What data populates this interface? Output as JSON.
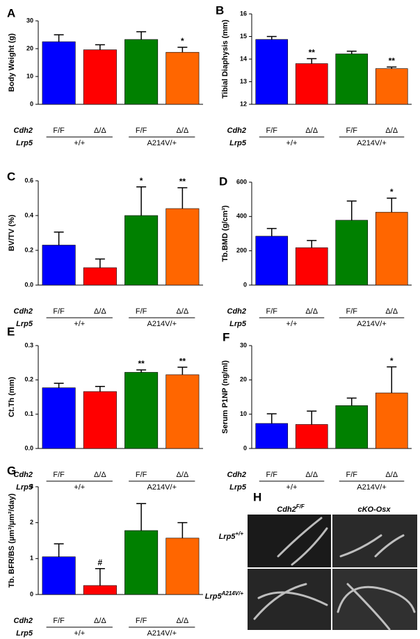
{
  "chart_data": [
    {
      "type": "bar",
      "panel": "A",
      "ylabel": "Body Weight (g)",
      "categories": [
        "F/F",
        "Δ/Δ",
        "F/F",
        "Δ/Δ"
      ],
      "groups": [
        "+/+",
        "A214V/+"
      ],
      "row_labels": [
        "Cdh2",
        "Lrp5"
      ],
      "colors": [
        "#0000ff",
        "#ff0000",
        "#008000",
        "#ff6600"
      ],
      "values": [
        22.5,
        19.6,
        23.3,
        18.7
      ],
      "errors": [
        2.5,
        1.8,
        2.8,
        1.8
      ],
      "annotations": [
        {
          "index": 3,
          "text": "*"
        }
      ],
      "ylim": [
        0,
        30
      ],
      "yticks": [
        0,
        10,
        20,
        30
      ]
    },
    {
      "type": "bar",
      "panel": "B",
      "ylabel": "Tibial Diaphysis (mm)",
      "categories": [
        "F/F",
        "Δ/Δ",
        "F/F",
        "Δ/Δ"
      ],
      "groups": [
        "+/+",
        "A214V/+"
      ],
      "row_labels": [
        "Cdh2",
        "Lrp5"
      ],
      "colors": [
        "#0000ff",
        "#ff0000",
        "#008000",
        "#ff6600"
      ],
      "values": [
        14.87,
        13.8,
        14.23,
        13.58
      ],
      "errors": [
        0.13,
        0.22,
        0.12,
        0.07
      ],
      "annotations": [
        {
          "index": 1,
          "text": "**"
        },
        {
          "index": 3,
          "text": "**"
        }
      ],
      "ylim": [
        12,
        16
      ],
      "yticks": [
        12,
        13,
        14,
        15,
        16
      ]
    },
    {
      "type": "bar",
      "panel": "C",
      "ylabel": "BV/TV (%)",
      "categories": [
        "F/F",
        "Δ/Δ",
        "F/F",
        "Δ/Δ"
      ],
      "groups": [
        "+/+",
        "A214V/+"
      ],
      "row_labels": [
        "Cdh2",
        "Lrp5"
      ],
      "colors": [
        "#0000ff",
        "#ff0000",
        "#008000",
        "#ff6600"
      ],
      "values": [
        0.23,
        0.1,
        0.4,
        0.44
      ],
      "errors": [
        0.075,
        0.05,
        0.165,
        0.12
      ],
      "annotations": [
        {
          "index": 2,
          "text": "*"
        },
        {
          "index": 3,
          "text": "**"
        }
      ],
      "ylim": [
        0,
        0.6
      ],
      "yticks": [
        {
          "value": 0,
          "label": "0.0"
        },
        0.2,
        0.4,
        0.6
      ]
    },
    {
      "type": "bar",
      "panel": "D",
      "ylabel": "Tb.BMD (g/cm³)",
      "categories": [
        "F/F",
        "Δ/Δ",
        "F/F",
        "Δ/Δ"
      ],
      "groups": [
        "+/+",
        "A214V/+"
      ],
      "row_labels": [
        "Cdh2",
        "Lrp5"
      ],
      "colors": [
        "#0000ff",
        "#ff0000",
        "#008000",
        "#ff6600"
      ],
      "values": [
        285,
        218,
        378,
        425
      ],
      "errors": [
        45,
        42,
        112,
        82
      ],
      "annotations": [
        {
          "index": 3,
          "text": "*"
        }
      ],
      "ylim": [
        0,
        600
      ],
      "yticks": [
        0,
        200,
        400,
        600
      ]
    },
    {
      "type": "bar",
      "panel": "E",
      "ylabel": "Ct.Th (mm)",
      "categories": [
        "F/F",
        "Δ/Δ",
        "F/F",
        "Δ/Δ"
      ],
      "groups": [
        "+/+",
        "A214V/+"
      ],
      "row_labels": [
        "Cdh2",
        "Lrp5"
      ],
      "colors": [
        "#0000ff",
        "#ff0000",
        "#008000",
        "#ff6600"
      ],
      "values": [
        0.177,
        0.166,
        0.222,
        0.215
      ],
      "errors": [
        0.013,
        0.015,
        0.007,
        0.022
      ],
      "annotations": [
        {
          "index": 2,
          "text": "**"
        },
        {
          "index": 3,
          "text": "**"
        }
      ],
      "ylim": [
        0,
        0.3
      ],
      "yticks": [
        {
          "value": 0,
          "label": "0.0"
        },
        0.1,
        0.2,
        0.3
      ]
    },
    {
      "type": "bar",
      "panel": "F",
      "ylabel": "Serum P1NP (ng/ml)",
      "categories": [
        "F/F",
        "Δ/Δ",
        "F/F",
        "Δ/Δ"
      ],
      "groups": [
        "+/+",
        "A214V/+"
      ],
      "row_labels": [
        "Cdh2",
        "Lrp5"
      ],
      "colors": [
        "#0000ff",
        "#ff0000",
        "#008000",
        "#ff6600"
      ],
      "values": [
        7.3,
        7.0,
        12.5,
        16.2
      ],
      "errors": [
        2.8,
        3.9,
        2.2,
        7.6
      ],
      "annotations": [
        {
          "index": 3,
          "text": "*"
        }
      ],
      "ylim": [
        0,
        30
      ],
      "yticks": [
        0,
        10,
        20,
        30
      ]
    },
    {
      "type": "bar",
      "panel": "G",
      "ylabel": "Tb. BFR/BS (µm³/µm²/day)",
      "categories": [
        "F/F",
        "Δ/Δ",
        "F/F",
        "Δ/Δ"
      ],
      "groups": [
        "+/+",
        "A214V/+"
      ],
      "row_labels": [
        "Cdh2",
        "Lrp5"
      ],
      "colors": [
        "#0000ff",
        "#ff0000",
        "#008000",
        "#ff6600"
      ],
      "values": [
        1.05,
        0.25,
        1.78,
        1.57
      ],
      "errors": [
        0.36,
        0.47,
        0.75,
        0.43
      ],
      "annotations": [
        {
          "index": 1,
          "text": "#"
        }
      ],
      "ylim": [
        0,
        3
      ],
      "yticks": [
        0,
        1,
        2,
        3
      ]
    }
  ],
  "image_panel": {
    "panel": "H",
    "col_labels": [
      {
        "base": "Cdh2",
        "sup": "F/F"
      },
      "cKO-Osx"
    ],
    "row_labels": [
      {
        "base": "Lrp5",
        "sup": "+/+"
      },
      {
        "base": "Lrp5",
        "sup": "A214V/+"
      }
    ]
  }
}
